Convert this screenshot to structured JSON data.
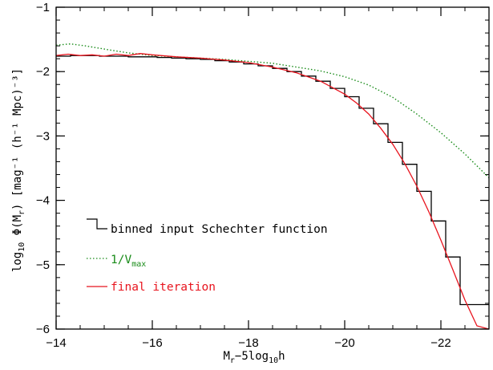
{
  "chart_data": {
    "type": "line",
    "xlabel": {
      "main": "M",
      "sub1": "r",
      "mid": "−5log",
      "sub2": "10",
      "tail": "h"
    },
    "ylabel": {
      "pre": "log",
      "sub1": "10",
      "mid": " Φ(M",
      "sub2": "r",
      "tail": ") [mag⁻¹ (h⁻¹ Mpc)⁻³]"
    },
    "xlim": [
      -14,
      -23
    ],
    "ylim": [
      -6,
      -1
    ],
    "x_ticks": [
      -14,
      -16,
      -18,
      -20,
      -22
    ],
    "y_ticks": [
      -6,
      -5,
      -4,
      -3,
      -2,
      -1
    ],
    "x_tick_labels": [
      "−14",
      "−16",
      "−18",
      "−20",
      "−22"
    ],
    "y_tick_labels": [
      "−6",
      "−5",
      "−4",
      "−3",
      "−2",
      "−1"
    ],
    "x_minor_step": 0.5,
    "y_minor_step": 0.2,
    "legend_placement": "lower-left",
    "series": [
      {
        "name": "binned input Schechter function",
        "style": "step",
        "color": "#000000",
        "edges": [
          -14.0,
          -14.3,
          -14.6,
          -14.9,
          -15.2,
          -15.5,
          -15.8,
          -16.1,
          -16.4,
          -16.7,
          -17.0,
          -17.3,
          -17.6,
          -17.9,
          -18.2,
          -18.5,
          -18.8,
          -19.1,
          -19.4,
          -19.7,
          -20.0,
          -20.3,
          -20.6,
          -20.9,
          -21.2,
          -21.5,
          -21.8,
          -22.1,
          -22.4,
          -22.7,
          -23.0
        ],
        "values": [
          -1.76,
          -1.75,
          -1.75,
          -1.76,
          -1.76,
          -1.77,
          -1.77,
          -1.78,
          -1.79,
          -1.8,
          -1.81,
          -1.83,
          -1.85,
          -1.88,
          -1.91,
          -1.95,
          -2.0,
          -2.07,
          -2.15,
          -2.26,
          -2.39,
          -2.57,
          -2.81,
          -3.1,
          -3.44,
          -3.86,
          -4.32,
          -4.88,
          -5.62,
          -5.62
        ]
      },
      {
        "name": "1/V",
        "name_sub": "max",
        "style": "dotted",
        "color": "#1a8c1a",
        "x": [
          -14.0,
          -14.3,
          -14.6,
          -15.0,
          -15.5,
          -16.0,
          -16.5,
          -17.0,
          -17.5,
          -18.0,
          -18.5,
          -19.0,
          -19.5,
          -20.0,
          -20.5,
          -21.0,
          -21.5,
          -22.0,
          -22.5,
          -23.0
        ],
        "y": [
          -1.59,
          -1.57,
          -1.6,
          -1.65,
          -1.71,
          -1.75,
          -1.77,
          -1.79,
          -1.81,
          -1.84,
          -1.87,
          -1.93,
          -1.99,
          -2.08,
          -2.21,
          -2.4,
          -2.66,
          -2.95,
          -3.28,
          -3.65
        ]
      },
      {
        "name": "final iteration",
        "style": "solid",
        "color": "#e8141e",
        "x": [
          -14.0,
          -14.25,
          -14.5,
          -14.75,
          -15.0,
          -15.25,
          -15.5,
          -15.75,
          -16.0,
          -16.5,
          -17.0,
          -17.5,
          -18.0,
          -18.5,
          -19.0,
          -19.5,
          -20.0,
          -20.25,
          -20.5,
          -20.75,
          -21.0,
          -21.25,
          -21.5,
          -21.75,
          -22.0,
          -22.25,
          -22.5,
          -22.75,
          -23.0
        ],
        "y": [
          -1.75,
          -1.73,
          -1.75,
          -1.74,
          -1.76,
          -1.73,
          -1.75,
          -1.72,
          -1.74,
          -1.77,
          -1.79,
          -1.82,
          -1.86,
          -1.93,
          -2.02,
          -2.15,
          -2.35,
          -2.49,
          -2.66,
          -2.88,
          -3.13,
          -3.43,
          -3.78,
          -4.18,
          -4.62,
          -5.08,
          -5.55,
          -5.95,
          -6.0
        ]
      }
    ]
  }
}
